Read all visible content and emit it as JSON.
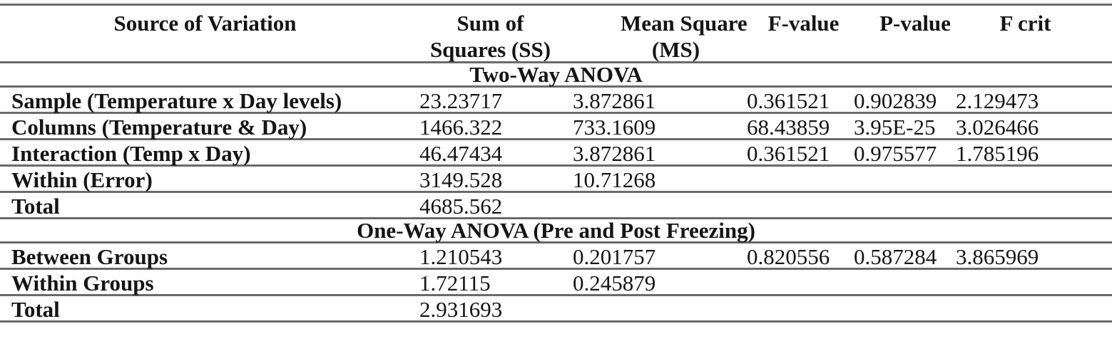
{
  "table": {
    "header": {
      "source": "Source of Variation",
      "ss_line1": "Sum of",
      "ss_line2": "Squares (SS)",
      "ms_line1": "Mean Square",
      "ms_line2": "(MS)",
      "f": "F-value",
      "p": "P-value",
      "fcrit": "F crit"
    },
    "sections": [
      {
        "title": "Two-Way ANOVA",
        "rows": [
          {
            "label": "Sample (Temperature x Day levels)",
            "ss": "23.23717",
            "ms": "3.872861",
            "f": "0.361521",
            "p": "0.902839",
            "fcrit": "2.129473"
          },
          {
            "label": "Columns (Temperature & Day)",
            "ss": "1466.322",
            "ms": "733.1609",
            "f": "68.43859",
            "p": "3.95E-25",
            "fcrit": "3.026466"
          },
          {
            "label": "Interaction (Temp x Day)",
            "ss": "46.47434",
            "ms": "3.872861",
            "f": "0.361521",
            "p": "0.975577",
            "fcrit": "1.785196"
          },
          {
            "label": "Within (Error)",
            "ss": "3149.528",
            "ms": "10.71268",
            "f": "",
            "p": "",
            "fcrit": ""
          },
          {
            "label": "Total",
            "ss": "4685.562",
            "ms": "",
            "f": "",
            "p": "",
            "fcrit": ""
          }
        ]
      },
      {
        "title": "One-Way ANOVA (Pre and Post Freezing)",
        "rows": [
          {
            "label": "Between Groups",
            "ss": "1.210543",
            "ms": "0.201757",
            "f": "0.820556",
            "p": "0.587284",
            "fcrit": "3.865969"
          },
          {
            "label": "Within Groups",
            "ss": "1.72115",
            "ms": "0.245879",
            "f": "",
            "p": "",
            "fcrit": ""
          },
          {
            "label": "Total",
            "ss": "2.931693",
            "ms": "",
            "f": "",
            "p": "",
            "fcrit": ""
          }
        ]
      }
    ],
    "colors": {
      "rule": "#6a6a6a",
      "text": "#151515",
      "background": "#ffffff"
    }
  }
}
